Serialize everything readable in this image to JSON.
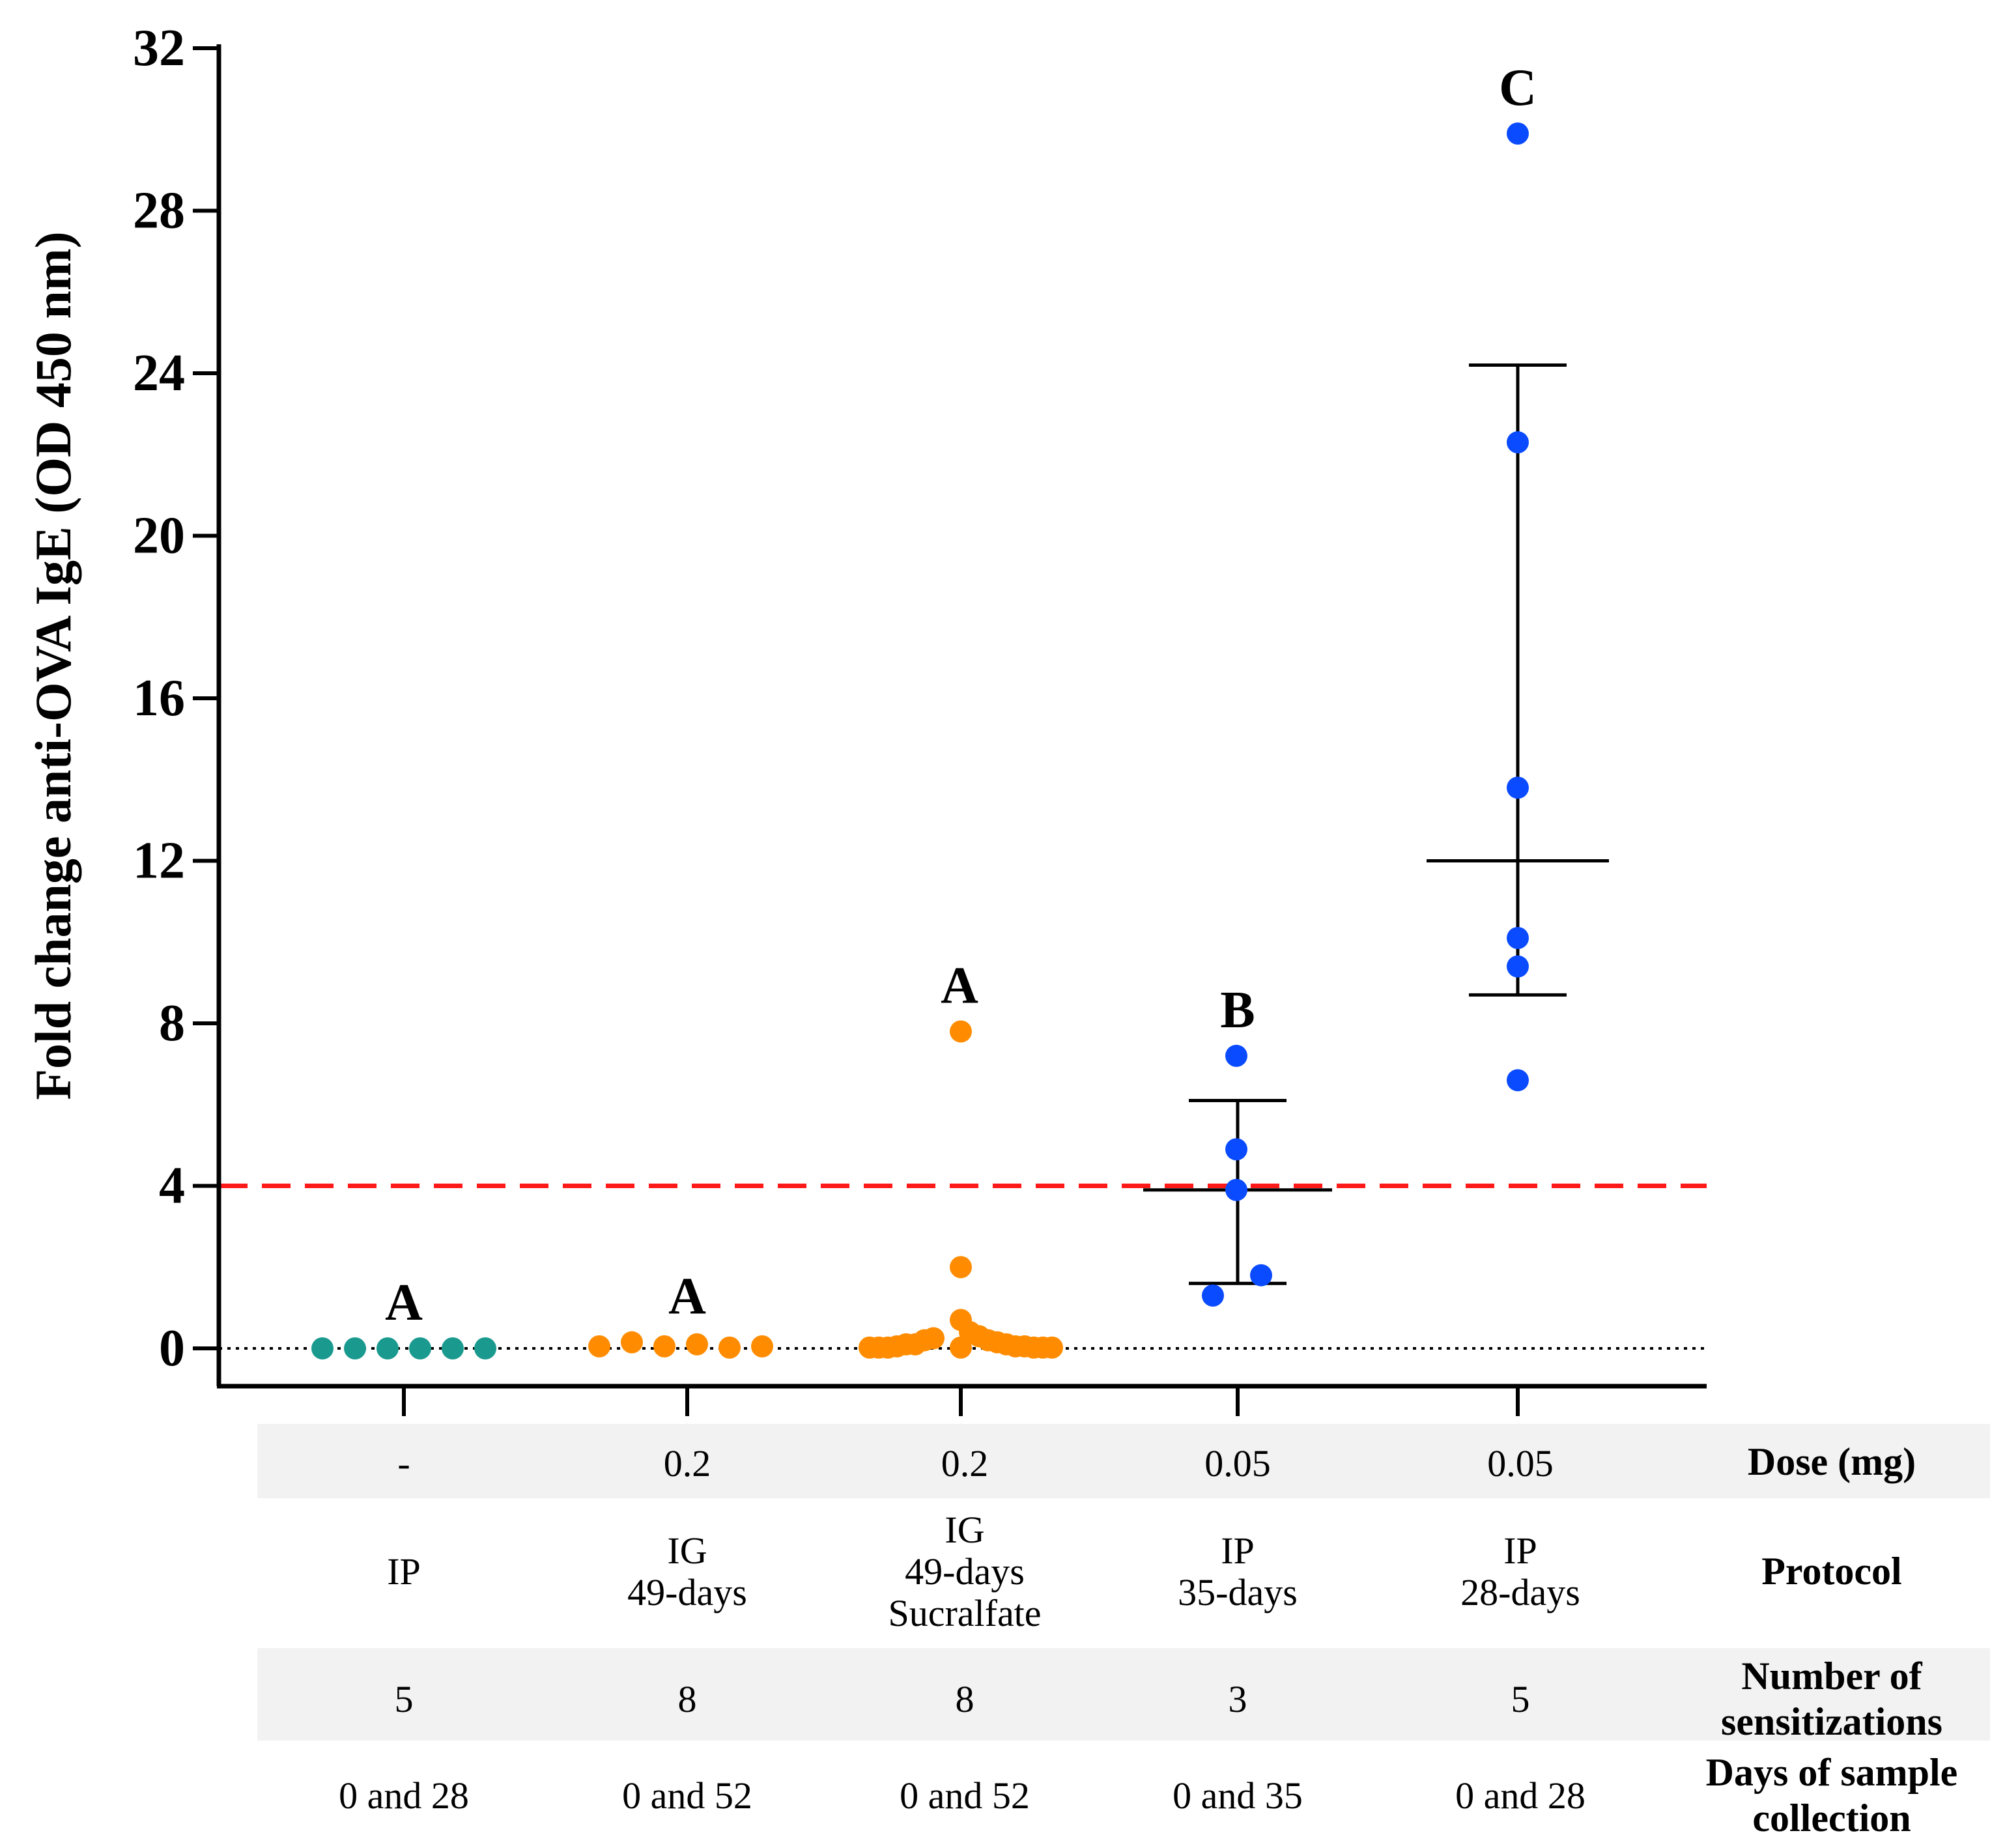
{
  "chart_data": {
    "type": "scatter",
    "ylabel": "Fold change anti-OVA IgE (OD 450 nm)",
    "ylim": [
      0,
      32
    ],
    "yticks": [
      0,
      4,
      8,
      12,
      16,
      20,
      24,
      28,
      32
    ],
    "ytick_labels": [
      "0",
      "4",
      "8",
      "12",
      "16",
      "20",
      "24",
      "28",
      "32"
    ],
    "threshold": {
      "value": 4,
      "color": "#ff1a1a",
      "style": "dashed"
    },
    "zero_line": {
      "value": 0,
      "style": "dotted"
    },
    "groups": [
      {
        "color": "#1a9a8f",
        "letter": "A",
        "points": [
          0,
          0,
          0,
          0,
          0,
          0
        ],
        "mean": null,
        "err_low": null,
        "err_high": null,
        "dose": "-",
        "protocol": [
          "IP"
        ],
        "sensitizations": "5",
        "days": "0 and 28"
      },
      {
        "color": "#ff8c00",
        "letter": "A",
        "points": [
          0.05,
          0.15,
          0.05,
          0.1,
          0.02,
          0.05
        ],
        "mean": null,
        "err_low": null,
        "err_high": null,
        "dose": "0.2",
        "protocol": [
          "IG",
          "49-days"
        ],
        "sensitizations": "8",
        "days": "0 and 52"
      },
      {
        "color": "#ff8c00",
        "letter": "A",
        "points": [
          7.8,
          2.0,
          0.7,
          0.4,
          0.3,
          0.25,
          0.2,
          0.2,
          0.15,
          0.1,
          0.1,
          0.1,
          0.05,
          0.05,
          0.05,
          0.02,
          0.02,
          0.02,
          0.02,
          0.02,
          0.02,
          0.02
        ],
        "mean": null,
        "err_low": null,
        "err_high": null,
        "dose": "0.2",
        "protocol": [
          "IG",
          "49-days",
          "Sucralfate"
        ],
        "sensitizations": "8",
        "days": "0 and 52"
      },
      {
        "color": "#0a4bff",
        "letter": "B",
        "points": [
          7.2,
          4.9,
          3.9,
          1.8,
          1.3
        ],
        "mean": 3.9,
        "err_low": 1.6,
        "err_high": 6.1,
        "dose": "0.05",
        "protocol": [
          "IP",
          "35-days"
        ],
        "sensitizations": "3",
        "days": "0 and 35"
      },
      {
        "color": "#0a4bff",
        "letter": "C",
        "points": [
          29.9,
          22.3,
          13.8,
          10.1,
          9.4,
          6.6
        ],
        "mean": 12.0,
        "err_low": 8.7,
        "err_high": 24.2,
        "dose": "0.05",
        "protocol": [
          "IP",
          "28-days"
        ],
        "sensitizations": "5",
        "days": "0 and 28"
      }
    ],
    "table": {
      "row_labels": [
        [
          "Dose (mg)"
        ],
        [
          "Protocol"
        ],
        [
          "Number of",
          "sensitizations"
        ],
        [
          "Days of sample",
          "collection"
        ]
      ],
      "shade_color": "#f2f2f2"
    }
  }
}
